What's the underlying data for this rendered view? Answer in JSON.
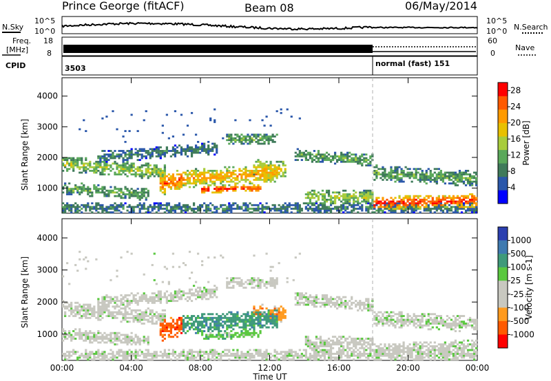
{
  "header": {
    "station": "Prince George (fitACF)",
    "beam": "Beam 08",
    "date": "06/May/2014"
  },
  "noise_panel": {
    "left_label": "N.Sky",
    "left_ticks": [
      "10^5",
      "10^0"
    ],
    "right_label": "N.Search",
    "right_ticks": [
      "10^5",
      "10^0"
    ]
  },
  "freq_panel": {
    "left_label_1": "Freq.",
    "left_label_2": "[MHz]",
    "left_ticks": [
      "18",
      "8"
    ],
    "right_label": "Nave",
    "right_ticks": [
      "60",
      "0"
    ]
  },
  "cpid_panel": {
    "label": "CPID",
    "segments": [
      {
        "start": "00:00",
        "text": "3503"
      },
      {
        "start": "18:00",
        "text": "normal (fast) 151"
      }
    ]
  },
  "colors": {
    "power_scale": [
      "#0000ff",
      "#2a57aa",
      "#3f7a5a",
      "#5aa85a",
      "#a8cc3c",
      "#e8c000",
      "#ff9a00",
      "#ff5a00",
      "#ff0000"
    ],
    "velocity_scale": [
      "#2b3fb0",
      "#3f7ab0",
      "#3f9a7a",
      "#5ac83f",
      "#c8c8c0",
      "#c8c8c0",
      "#ff9a1e",
      "#ff5a00",
      "#ff0000"
    ]
  },
  "chart_data": [
    {
      "type": "heatmap",
      "title": "Power",
      "xlabel": "Time UT",
      "ylabel": "Slant Range [km]",
      "x_ticks": [
        "00:00",
        "04:00",
        "08:00",
        "12:00",
        "16:00",
        "20:00",
        "00:00"
      ],
      "xlim_hours": [
        0,
        24
      ],
      "y_ticks": [
        1000,
        2000,
        3000,
        4000
      ],
      "ylim_km": [
        180,
        4600
      ],
      "colorbar": {
        "label": "Power [dB]",
        "ticks": [
          4,
          8,
          12,
          16,
          20,
          24,
          28
        ],
        "range": [
          0,
          30
        ]
      },
      "mode_change_hour": 18
    },
    {
      "type": "heatmap",
      "title": "Velocity",
      "xlabel": "Time UT",
      "ylabel": "Slant Range [km]",
      "x_ticks": [
        "00:00",
        "04:00",
        "08:00",
        "12:00",
        "16:00",
        "20:00",
        "00:00"
      ],
      "xlim_hours": [
        0,
        24
      ],
      "y_ticks": [
        1000,
        2000,
        3000,
        4000
      ],
      "ylim_km": [
        180,
        4600
      ],
      "colorbar": {
        "label": "Velocity [m s-1]",
        "ticks": [
          "1000",
          "500",
          "100",
          "25",
          "-25",
          "-100",
          "-500",
          "-1000"
        ]
      },
      "mode_change_hour": 18
    }
  ],
  "axis": {
    "x_ticks": [
      "00:00",
      "04:00",
      "08:00",
      "12:00",
      "16:00",
      "20:00",
      "00:00"
    ],
    "xlabel": "Time UT"
  }
}
